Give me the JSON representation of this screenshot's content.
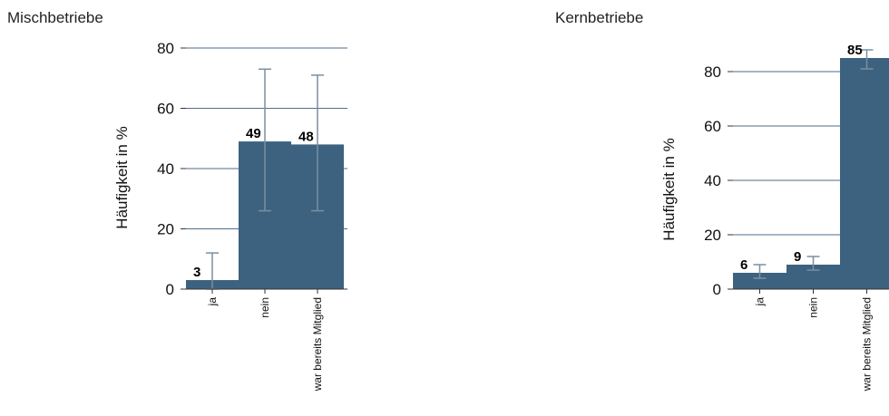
{
  "chart_data": [
    {
      "type": "bar",
      "title": "Mischbetriebe",
      "ylabel": "Häufigkeit in %",
      "ylim": [
        0,
        80
      ],
      "yticks": [
        0,
        20,
        40,
        60,
        80
      ],
      "grid": true,
      "categories": [
        "ja",
        "nein",
        "war bereits Mitglied"
      ],
      "values": [
        3,
        49,
        48
      ],
      "data_labels": [
        "3",
        "49",
        "48"
      ],
      "error_bars": [
        [
          0,
          12
        ],
        [
          26,
          73
        ],
        [
          26,
          71
        ]
      ],
      "colors": {
        "bar": "#3c6280",
        "error": "#7a8fa0",
        "grid": "#4e6e8a"
      }
    },
    {
      "type": "bar",
      "title": "Kernbetriebe",
      "ylabel": "Häufigkeit in %",
      "ylim": [
        0,
        80
      ],
      "yticks": [
        0,
        20,
        40,
        60,
        80
      ],
      "grid": true,
      "categories": [
        "ja",
        "nein",
        "war bereits Mitglied"
      ],
      "values": [
        6,
        9,
        85
      ],
      "data_labels": [
        "6",
        "9",
        "85"
      ],
      "error_bars": [
        [
          4,
          9
        ],
        [
          7,
          12
        ],
        [
          81,
          88
        ]
      ],
      "colors": {
        "bar": "#3c6280",
        "error": "#7a8fa0",
        "grid": "#4e6e8a"
      }
    }
  ]
}
